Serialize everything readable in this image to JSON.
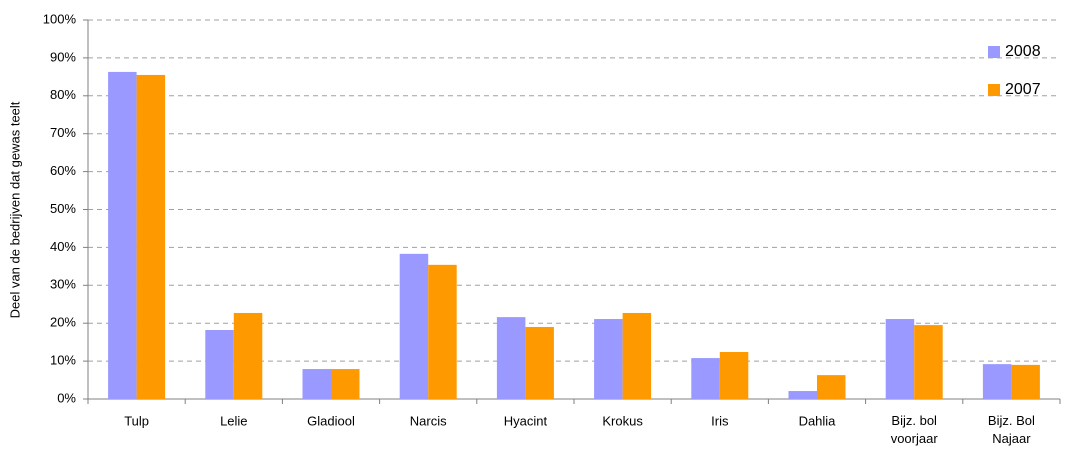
{
  "chart_data": {
    "type": "bar",
    "y_label": "Deel van de bedrijven dat gewas teelt",
    "categories": [
      "Tulp",
      "Lelie",
      "Gladiool",
      "Narcis",
      "Hyacint",
      "Krokus",
      "Iris",
      "Dahlia",
      "Bijz. bol voorjaar",
      "Bijz. Bol Najaar"
    ],
    "series": [
      {
        "name": "2008",
        "color": "#9999ff",
        "values": [
          86.3,
          18.2,
          7.9,
          38.3,
          21.6,
          21.1,
          10.8,
          2.1,
          21.1,
          9.2
        ]
      },
      {
        "name": "2007",
        "color": "#ff9900",
        "values": [
          85.5,
          22.7,
          7.9,
          35.4,
          19.0,
          22.7,
          12.4,
          6.3,
          19.5,
          9.0
        ]
      }
    ],
    "ylim": [
      0,
      100
    ],
    "yticks": [
      {
        "value": 0,
        "label": "0%"
      },
      {
        "value": 10,
        "label": "10%"
      },
      {
        "value": 20,
        "label": "20%"
      },
      {
        "value": 30,
        "label": "30%"
      },
      {
        "value": 40,
        "label": "40%"
      },
      {
        "value": 50,
        "label": "50%"
      },
      {
        "value": 60,
        "label": "60%"
      },
      {
        "value": 70,
        "label": "70%"
      },
      {
        "value": 80,
        "label": "80%"
      },
      {
        "value": 90,
        "label": "90%"
      },
      {
        "value": 100,
        "label": "100%"
      }
    ],
    "grid": true,
    "legend": "top-right"
  }
}
